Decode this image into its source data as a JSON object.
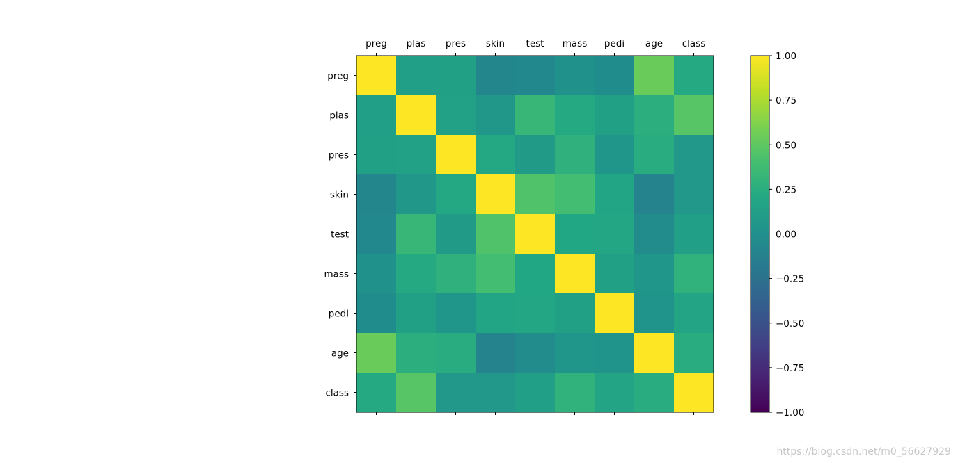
{
  "chart_data": {
    "type": "heatmap",
    "categories": [
      "preg",
      "plas",
      "pres",
      "skin",
      "test",
      "mass",
      "pedi",
      "age",
      "class"
    ],
    "matrix": [
      [
        1.0,
        0.13,
        0.14,
        -0.08,
        -0.07,
        0.02,
        -0.03,
        0.54,
        0.22
      ],
      [
        0.13,
        1.0,
        0.15,
        0.06,
        0.33,
        0.22,
        0.14,
        0.26,
        0.47
      ],
      [
        0.14,
        0.15,
        1.0,
        0.21,
        0.09,
        0.28,
        0.04,
        0.24,
        0.07
      ],
      [
        -0.08,
        0.06,
        0.21,
        1.0,
        0.44,
        0.39,
        0.18,
        -0.11,
        0.07
      ],
      [
        -0.07,
        0.33,
        0.09,
        0.44,
        1.0,
        0.2,
        0.19,
        -0.04,
        0.13
      ],
      [
        0.02,
        0.22,
        0.28,
        0.39,
        0.2,
        1.0,
        0.14,
        0.04,
        0.29
      ],
      [
        -0.03,
        0.14,
        0.04,
        0.18,
        0.19,
        0.14,
        1.0,
        0.03,
        0.17
      ],
      [
        0.54,
        0.26,
        0.24,
        -0.11,
        -0.04,
        0.04,
        0.03,
        1.0,
        0.24
      ],
      [
        0.22,
        0.47,
        0.07,
        0.07,
        0.13,
        0.29,
        0.17,
        0.24,
        1.0
      ]
    ],
    "colorbar": {
      "vmin": -1.0,
      "vmax": 1.0,
      "ticks": [
        1.0,
        0.75,
        0.5,
        0.25,
        0.0,
        -0.25,
        -0.5,
        -0.75,
        -1.0
      ],
      "tick_labels": [
        "1.00",
        "0.75",
        "0.50",
        "0.25",
        "0.00",
        "−0.25",
        "−0.50",
        "−0.75",
        "−1.00"
      ],
      "colormap": "viridis"
    },
    "x_tick_position": "top",
    "grid": false
  },
  "watermark": "https://blog.csdn.net/m0_56627929"
}
